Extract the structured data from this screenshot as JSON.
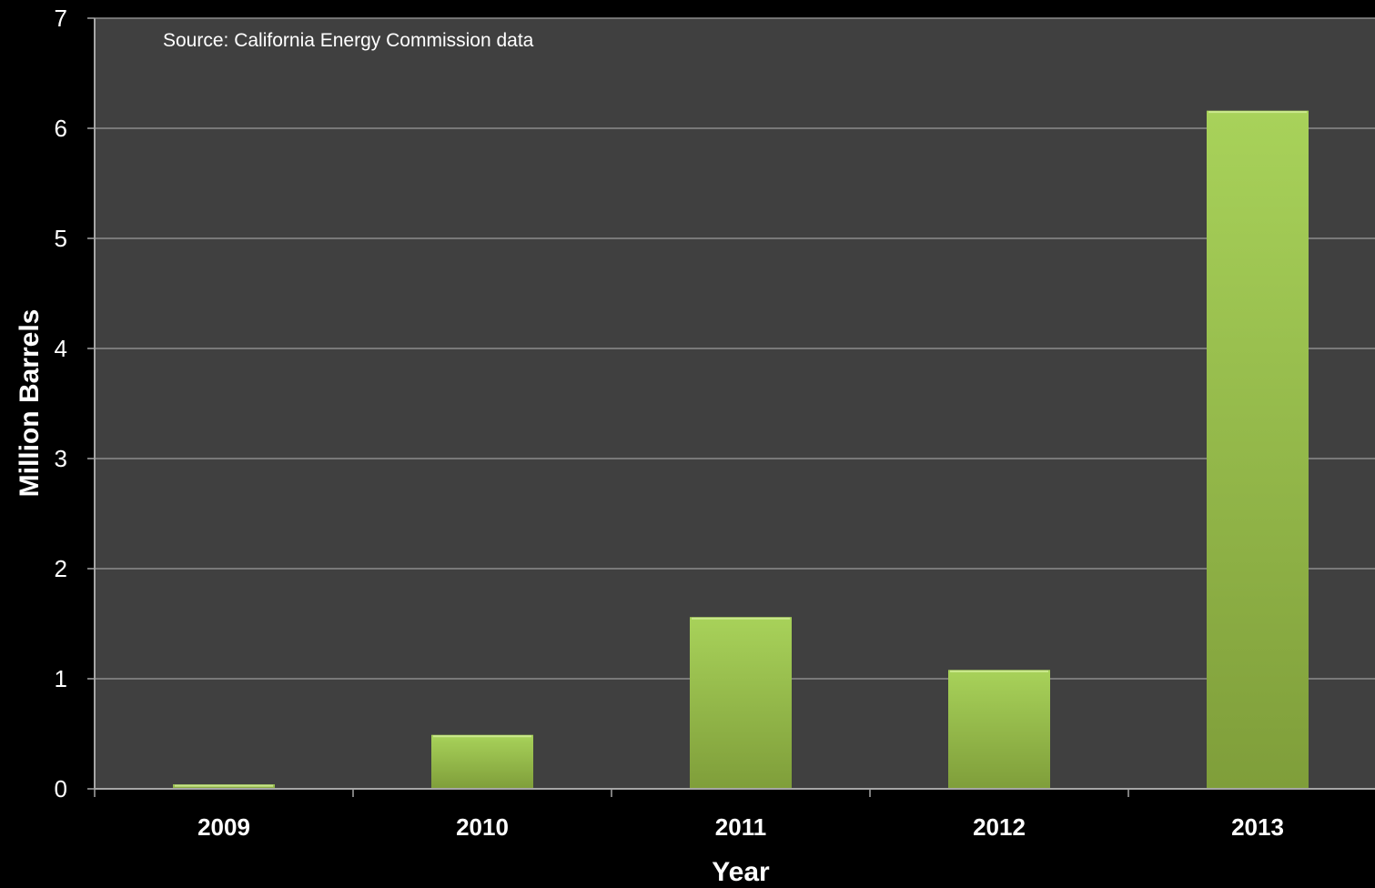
{
  "colors": {
    "page_background": "#000000",
    "plot_background": "#404040",
    "gridline": "#8c8c8c",
    "axis": "#a6a6a6",
    "text": "#ffffff",
    "bar_top": "#a8d25a",
    "bar_bottom": "#7f9e3a"
  },
  "chart_data": {
    "type": "bar",
    "title": "",
    "xlabel": "Year",
    "ylabel": "Million Barrels",
    "annotation": "Source: California Energy Commission data",
    "categories": [
      "2009",
      "2010",
      "2011",
      "2012",
      "2013"
    ],
    "values": [
      0.04,
      0.49,
      1.56,
      1.08,
      6.16
    ],
    "ylim": [
      0,
      7
    ],
    "yticks": [
      0,
      1,
      2,
      3,
      4,
      5,
      6,
      7
    ],
    "grid": true,
    "legend": "none"
  }
}
